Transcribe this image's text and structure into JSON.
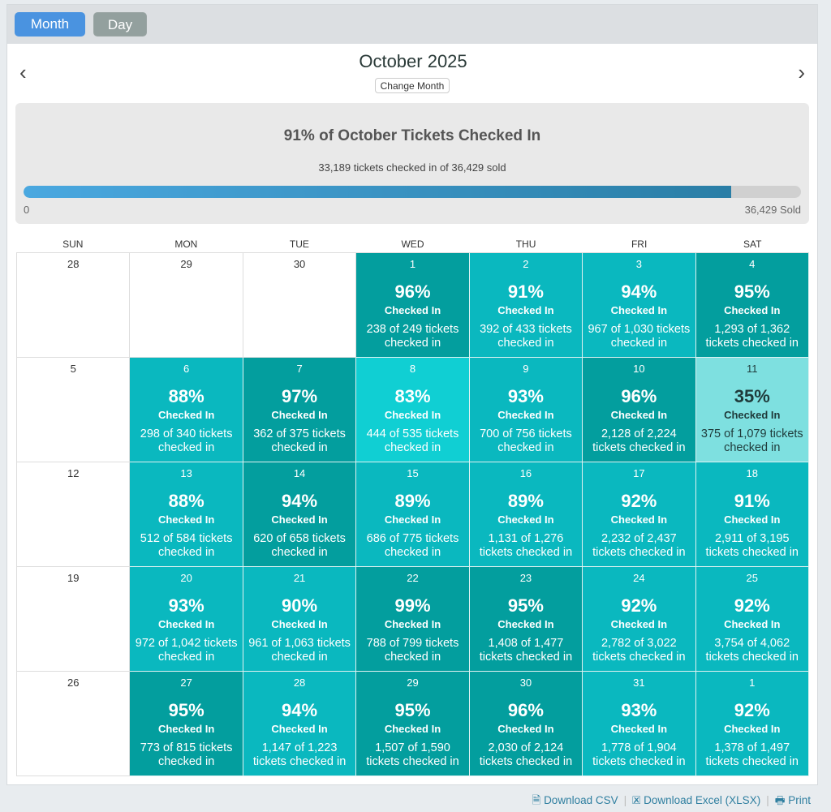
{
  "view_toggle": {
    "month": "Month",
    "day": "Day"
  },
  "header": {
    "title": "October 2025",
    "change_month": "Change Month",
    "prev_icon": "‹",
    "next_icon": "›"
  },
  "summary": {
    "title": "91% of October Tickets Checked In",
    "subtitle": "33,189 tickets checked in of 36,429 sold",
    "progress_percent": 91,
    "min_label": "0",
    "max_label": "36,429 Sold"
  },
  "weekdays": [
    "SUN",
    "MON",
    "TUE",
    "WED",
    "THU",
    "FRI",
    "SAT"
  ],
  "checked_label": "Checked In",
  "colors": {
    "dark": "#039e9e",
    "mid": "#0ab8bf",
    "light": "#10cfd3",
    "pale": "#7ee0e0"
  },
  "days": [
    {
      "day": "28"
    },
    {
      "day": "29"
    },
    {
      "day": "30"
    },
    {
      "day": "1",
      "pct": "96%",
      "tone": "dark",
      "count": "238 of 249 tickets checked in"
    },
    {
      "day": "2",
      "pct": "91%",
      "tone": "mid",
      "count": "392 of 433 tickets checked in"
    },
    {
      "day": "3",
      "pct": "94%",
      "tone": "mid",
      "count": "967 of 1,030 tickets checked in"
    },
    {
      "day": "4",
      "pct": "95%",
      "tone": "dark",
      "count": "1,293 of 1,362 tickets checked in"
    },
    {
      "day": "5"
    },
    {
      "day": "6",
      "pct": "88%",
      "tone": "mid",
      "count": "298 of 340 tickets checked in"
    },
    {
      "day": "7",
      "pct": "97%",
      "tone": "dark",
      "count": "362 of 375 tickets checked in"
    },
    {
      "day": "8",
      "pct": "83%",
      "tone": "light",
      "count": "444 of 535 tickets checked in"
    },
    {
      "day": "9",
      "pct": "93%",
      "tone": "mid",
      "count": "700 of 756 tickets checked in"
    },
    {
      "day": "10",
      "pct": "96%",
      "tone": "dark",
      "count": "2,128 of 2,224 tickets checked in"
    },
    {
      "day": "11",
      "pct": "35%",
      "tone": "pale",
      "count": "375 of 1,079 tickets checked in"
    },
    {
      "day": "12"
    },
    {
      "day": "13",
      "pct": "88%",
      "tone": "mid",
      "count": "512 of 584 tickets checked in"
    },
    {
      "day": "14",
      "pct": "94%",
      "tone": "dark",
      "count": "620 of 658 tickets checked in"
    },
    {
      "day": "15",
      "pct": "89%",
      "tone": "mid",
      "count": "686 of 775 tickets checked in"
    },
    {
      "day": "16",
      "pct": "89%",
      "tone": "mid",
      "count": "1,131 of 1,276 tickets checked in"
    },
    {
      "day": "17",
      "pct": "92%",
      "tone": "mid",
      "count": "2,232 of 2,437 tickets checked in"
    },
    {
      "day": "18",
      "pct": "91%",
      "tone": "mid",
      "count": "2,911 of 3,195 tickets checked in"
    },
    {
      "day": "19"
    },
    {
      "day": "20",
      "pct": "93%",
      "tone": "mid",
      "count": "972 of 1,042 tickets checked in"
    },
    {
      "day": "21",
      "pct": "90%",
      "tone": "mid",
      "count": "961 of 1,063 tickets checked in"
    },
    {
      "day": "22",
      "pct": "99%",
      "tone": "dark",
      "count": "788 of 799 tickets checked in"
    },
    {
      "day": "23",
      "pct": "95%",
      "tone": "dark",
      "count": "1,408 of 1,477 tickets checked in"
    },
    {
      "day": "24",
      "pct": "92%",
      "tone": "mid",
      "count": "2,782 of 3,022 tickets checked in"
    },
    {
      "day": "25",
      "pct": "92%",
      "tone": "mid",
      "count": "3,754 of 4,062 tickets checked in"
    },
    {
      "day": "26"
    },
    {
      "day": "27",
      "pct": "95%",
      "tone": "dark",
      "count": "773 of 815 tickets checked in"
    },
    {
      "day": "28",
      "pct": "94%",
      "tone": "mid",
      "count": "1,147 of 1,223 tickets checked in"
    },
    {
      "day": "29",
      "pct": "95%",
      "tone": "dark",
      "count": "1,507 of 1,590 tickets checked in"
    },
    {
      "day": "30",
      "pct": "96%",
      "tone": "dark",
      "count": "2,030 of 2,124 tickets checked in"
    },
    {
      "day": "31",
      "pct": "93%",
      "tone": "mid",
      "count": "1,778 of 1,904 tickets checked in"
    },
    {
      "day": "1",
      "pct": "92%",
      "tone": "mid",
      "count": "1,378 of 1,497 tickets checked in"
    }
  ],
  "footer": {
    "csv": "Download CSV",
    "excel": "Download Excel (XLSX)",
    "print": "Print"
  }
}
